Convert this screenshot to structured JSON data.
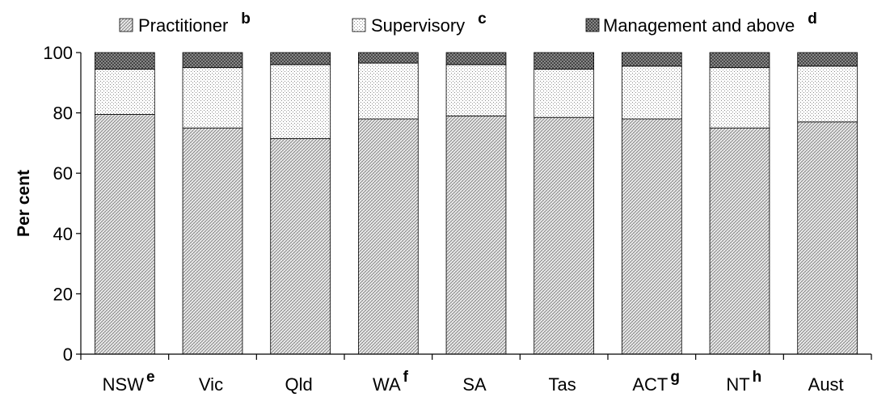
{
  "chart_data": {
    "type": "bar",
    "stacked": true,
    "categories": [
      "NSW",
      "Vic",
      "Qld",
      "WA",
      "SA",
      "Tas",
      "ACT",
      "NT",
      "Aust"
    ],
    "category_notes": [
      "e",
      "",
      "",
      "f",
      "",
      "",
      "g",
      "h",
      ""
    ],
    "series": [
      {
        "name": "Practitioner",
        "note": "b",
        "pattern": "dense-hatch",
        "values": [
          79.5,
          75.0,
          71.5,
          78.0,
          79.0,
          78.5,
          78.0,
          75.0,
          77.0
        ]
      },
      {
        "name": "Supervisory",
        "note": "c",
        "pattern": "dots",
        "values": [
          15.0,
          20.0,
          24.5,
          18.5,
          17.0,
          16.0,
          17.5,
          20.0,
          18.5
        ]
      },
      {
        "name": "Management and above",
        "note": "d",
        "pattern": "dark-crosshatch",
        "values": [
          5.5,
          5.0,
          4.0,
          3.5,
          4.0,
          5.5,
          4.5,
          5.0,
          4.5
        ]
      }
    ],
    "ylabel": "Per cent",
    "xlabel": "",
    "ylim": [
      0,
      100
    ],
    "yticks": [
      "0",
      "20",
      "40",
      "60",
      "80",
      "100"
    ],
    "grid": false,
    "legend_position": "top"
  }
}
